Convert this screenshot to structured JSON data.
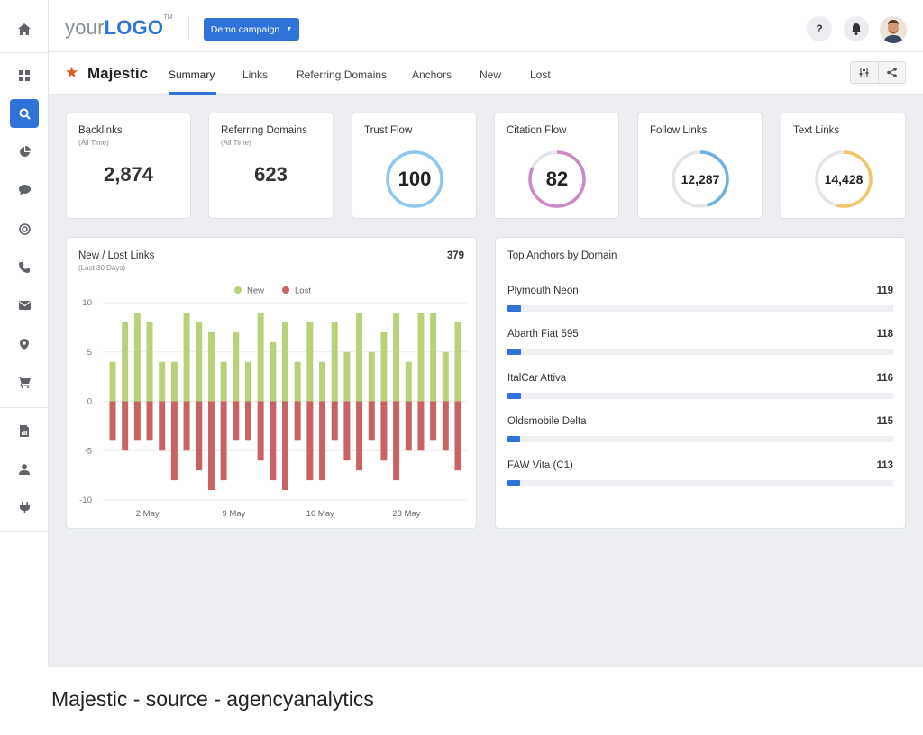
{
  "header": {
    "logo_your": "your",
    "logo_logo": "LOGO",
    "logo_tm": "TM",
    "campaign_label": "Demo campaign",
    "help_label": "?"
  },
  "subnav": {
    "brand": "Majestic",
    "tabs": [
      "Summary",
      "Links",
      "Referring Domains",
      "Anchors",
      "New",
      "Lost"
    ],
    "active_tab": "Summary"
  },
  "kpis": [
    {
      "title": "Backlinks",
      "subtitle": "(All Time)",
      "value": "2,874"
    },
    {
      "title": "Referring Domains",
      "subtitle": "(All Time)",
      "value": "623"
    },
    {
      "title": "Trust Flow",
      "value": "100",
      "ring_fraction": 1.0,
      "ring_color": "#8ec7f0"
    },
    {
      "title": "Citation Flow",
      "value": "82",
      "ring_fraction": 0.82,
      "ring_color": "#c98ac6"
    },
    {
      "title": "Follow Links",
      "value": "12,287",
      "ring_fraction": 0.46,
      "ring_color": "#6fb1e0"
    },
    {
      "title": "Text Links",
      "value": "14,428",
      "ring_fraction": 0.54,
      "ring_color": "#f1c56b"
    }
  ],
  "new_lost": {
    "title": "New / Lost Links",
    "subtitle": "(Last 30 Days)",
    "total": "379"
  },
  "top_anchors": {
    "title": "Top Anchors by Domain",
    "max": 3400,
    "items": [
      {
        "name": "Plymouth Neon",
        "value": 119
      },
      {
        "name": "Abarth Fiat 595",
        "value": 118
      },
      {
        "name": "ItalCar Attiva",
        "value": 116
      },
      {
        "name": "Oldsmobile Delta",
        "value": 115
      },
      {
        "name": "FAW Vita (C1)",
        "value": 113
      }
    ]
  },
  "colors": {
    "accent": "#2f73d9",
    "new": "#b9d27a",
    "lost": "#c96262",
    "ring_track": "#e3e5e8"
  },
  "caption": "Majestic - source - agencyanalytics",
  "chart_data": {
    "type": "bar",
    "legend": [
      "New",
      "Lost"
    ],
    "legend_position": "top-center",
    "ylim": [
      -10,
      10
    ],
    "yticks": [
      10,
      5,
      0,
      -5,
      -10
    ],
    "xtick_labels": [
      {
        "label": "2 May",
        "index": 1
      },
      {
        "label": "9 May",
        "index": 8
      },
      {
        "label": "16 May",
        "index": 15
      },
      {
        "label": "23 May",
        "index": 22
      }
    ],
    "series": [
      {
        "name": "New",
        "values": [
          4,
          8,
          9,
          8,
          4,
          4,
          9,
          8,
          7,
          4,
          7,
          4,
          9,
          6,
          8,
          4,
          8,
          4,
          8,
          5,
          9,
          5,
          7,
          9,
          4,
          9,
          9,
          5,
          8
        ]
      },
      {
        "name": "Lost",
        "values": [
          -4,
          -5,
          -4,
          -4,
          -5,
          -8,
          -5,
          -7,
          -9,
          -8,
          -4,
          -4,
          -6,
          -8,
          -9,
          -4,
          -8,
          -8,
          -4,
          -6,
          -7,
          -4,
          -6,
          -8,
          -5,
          -5,
          -4,
          -5,
          -7
        ]
      }
    ],
    "grid": true
  }
}
